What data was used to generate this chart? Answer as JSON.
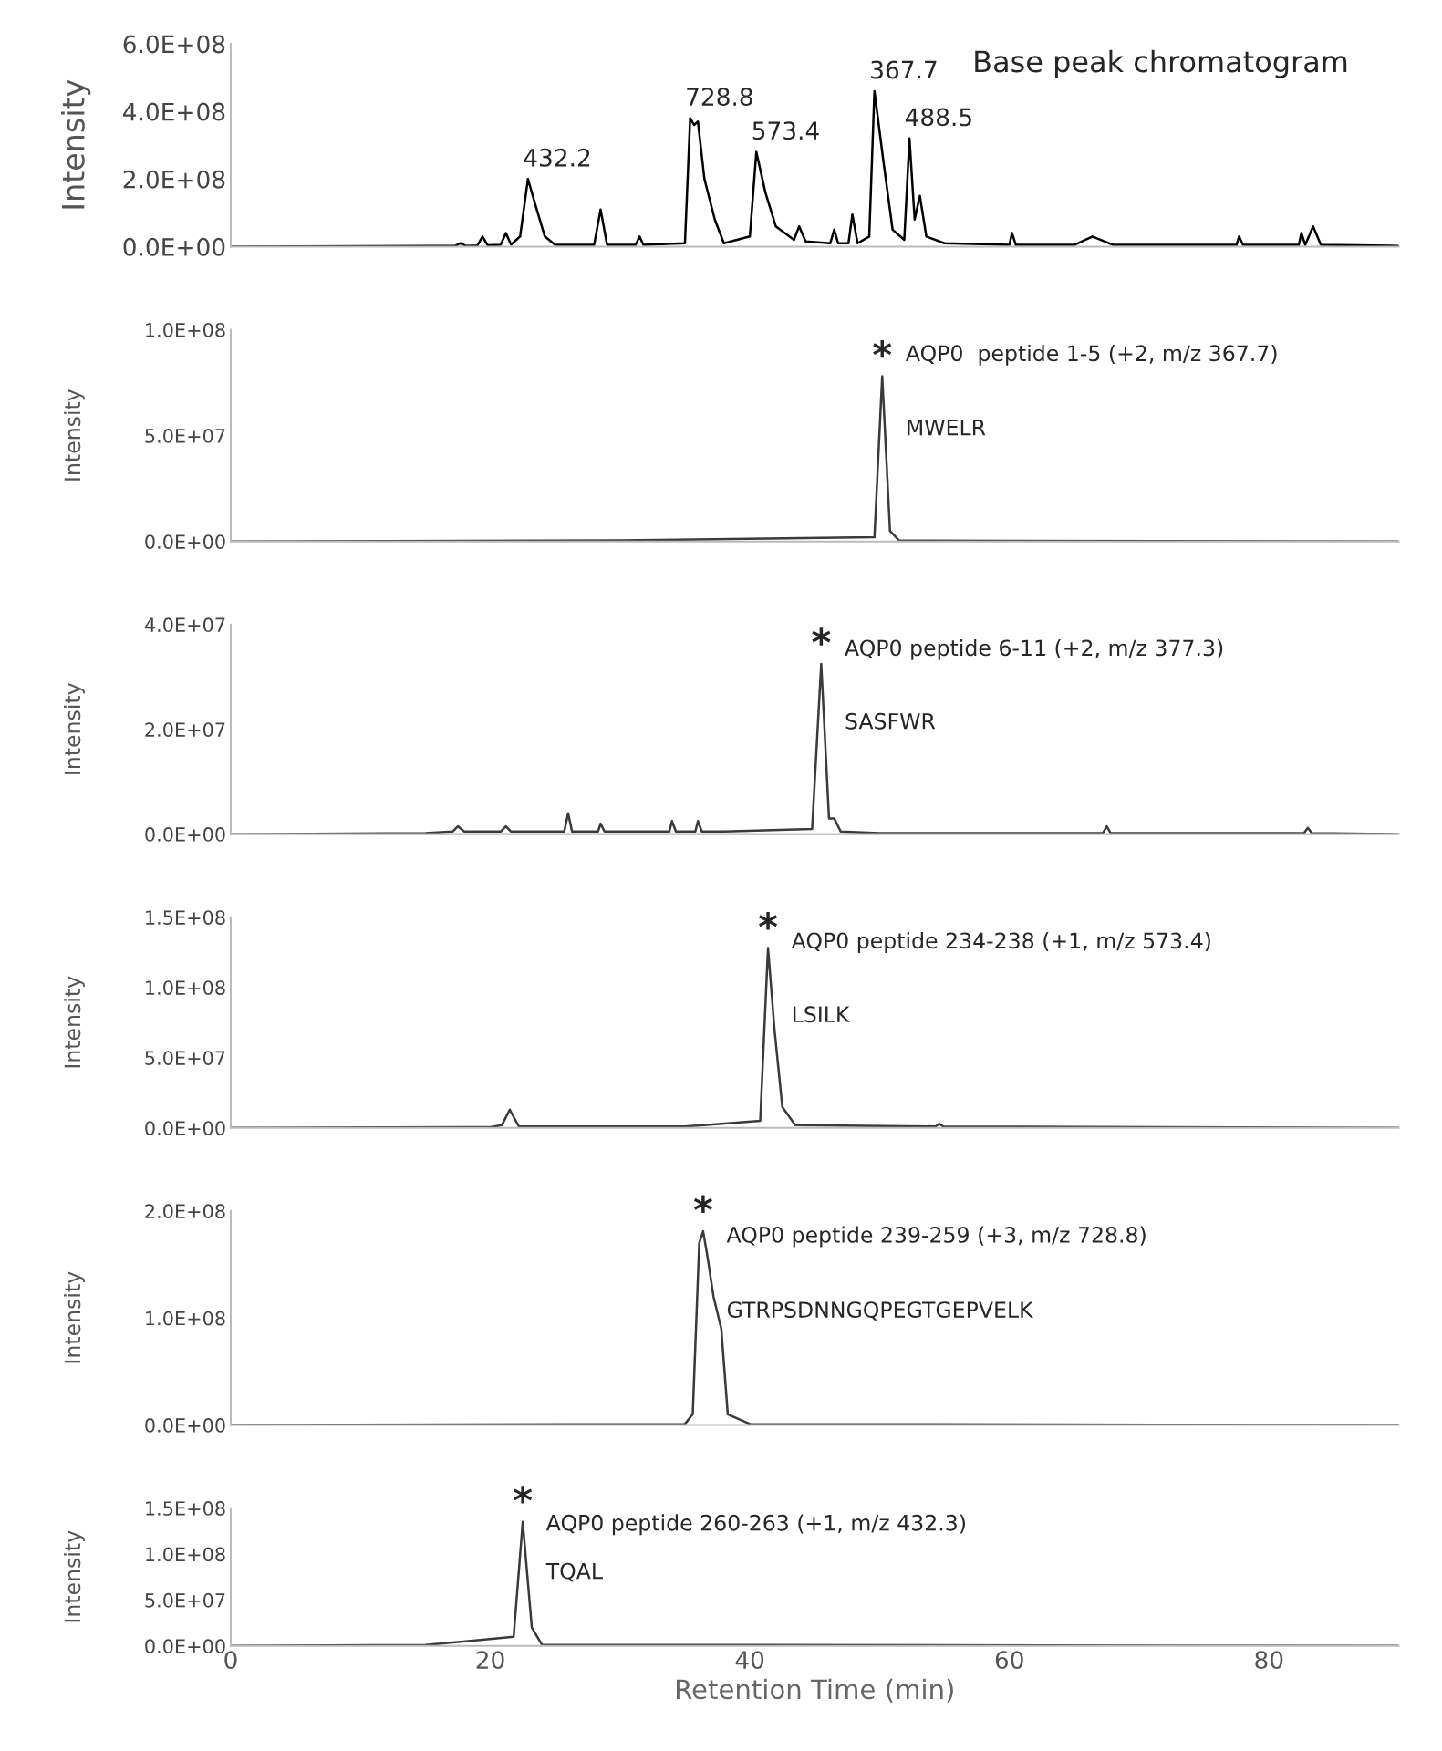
{
  "chart_data": [
    {
      "type": "line",
      "ylabel": "Intensity",
      "xlim": [
        0,
        90
      ],
      "ylim": [
        0,
        600000000.0
      ],
      "tick_labels": "y",
      "grid": false,
      "yticks": [
        {
          "value": 0,
          "label": "0.0E+00"
        },
        {
          "value": 200000000.0,
          "label": "2.0E+08"
        },
        {
          "value": 400000000.0,
          "label": "4.0E+08"
        },
        {
          "value": 600000000.0,
          "label": "6.0E+08"
        }
      ],
      "series": [
        {
          "color": "#000000",
          "x": [
            0,
            10,
            15,
            17.3,
            17.7,
            18.1,
            19,
            19.4,
            19.8,
            20.8,
            21.2,
            21.6,
            22.3,
            22.9,
            23.5,
            24.2,
            25,
            28,
            28.5,
            29,
            31.2,
            31.5,
            31.8,
            35,
            35.4,
            35.7,
            36,
            36.5,
            37.3,
            38,
            40,
            40.5,
            41.2,
            42,
            43.4,
            43.8,
            44.3,
            46.2,
            46.5,
            46.8,
            47.6,
            47.9,
            48.3,
            49.2,
            49.6,
            50.3,
            51,
            51.9,
            52.3,
            52.7,
            53.1,
            53.6,
            55,
            60,
            60.2,
            60.5,
            65,
            66.4,
            68,
            77.5,
            77.7,
            78,
            82.3,
            82.5,
            82.8,
            83.4,
            84,
            90
          ],
          "values": [
            0,
            1000000.0,
            2000000.0,
            2000000.0,
            10000000.0,
            2000000.0,
            3000000.0,
            30000000.0,
            4000000.0,
            5000000.0,
            40000000.0,
            6000000.0,
            30000000.0,
            200000000.0,
            120000000.0,
            30000000.0,
            5000000.0,
            5000000.0,
            110000000.0,
            5000000.0,
            5000000.0,
            30000000.0,
            5000000.0,
            10000000.0,
            380000000.0,
            360000000.0,
            370000000.0,
            200000000.0,
            80000000.0,
            10000000.0,
            30000000.0,
            280000000.0,
            160000000.0,
            60000000.0,
            20000000.0,
            60000000.0,
            15000000.0,
            10000000.0,
            50000000.0,
            10000000.0,
            10000000.0,
            95000000.0,
            10000000.0,
            30000000.0,
            460000000.0,
            250000000.0,
            50000000.0,
            20000000.0,
            320000000.0,
            80000000.0,
            150000000.0,
            30000000.0,
            10000000.0,
            5000000.0,
            40000000.0,
            5000000.0,
            5000000.0,
            30000000.0,
            5000000.0,
            5000000.0,
            30000000.0,
            5000000.0,
            5000000.0,
            40000000.0,
            5000000.0,
            60000000.0,
            5000000.0,
            2000000.0
          ]
        }
      ],
      "annotations": [
        {
          "text": "432.2",
          "x": 22.9,
          "y": 200000000.0
        },
        {
          "text": "728.8",
          "x": 35.4,
          "y": 380000000.0
        },
        {
          "text": "573.4",
          "x": 40.5,
          "y": 280000000.0
        },
        {
          "text": "367.7",
          "x": 49.6,
          "y": 460000000.0
        },
        {
          "text": "488.5",
          "x": 52.3,
          "y": 320000000.0
        },
        "Base peak chromatogram"
      ]
    },
    {
      "type": "line",
      "ylabel": "Intensity",
      "xlim": [
        0,
        90
      ],
      "ylim": [
        0,
        100000000.0
      ],
      "tick_labels": "y",
      "grid": false,
      "yticks": [
        {
          "value": 0,
          "label": "0.0E+00"
        },
        {
          "value": 50000000.0,
          "label": "5.0E+07"
        },
        {
          "value": 100000000.0,
          "label": "1.0E+08"
        }
      ],
      "series": [
        {
          "color": "#3a3a3a",
          "x": [
            0,
            30,
            49.6,
            50.2,
            50.8,
            51.5,
            60,
            90
          ],
          "values": [
            0,
            500000.0,
            2000000.0,
            78000000.0,
            5000000.0,
            500000.0,
            300000.0,
            0
          ]
        }
      ],
      "annotations": [
        {
          "text": "*",
          "x": 50.2,
          "y": 78000000.0
        },
        "AQP0  peptide 1-5 (+2, m/z 367.7)",
        "MWELR"
      ]
    },
    {
      "type": "line",
      "ylabel": "Intensity",
      "xlim": [
        0,
        90
      ],
      "ylim": [
        0,
        40000000.0
      ],
      "tick_labels": "y",
      "grid": false,
      "yticks": [
        {
          "value": 0,
          "label": "0.0E+00"
        },
        {
          "value": 20000000.0,
          "label": "2.0E+07"
        },
        {
          "value": 40000000.0,
          "label": "4.0E+07"
        }
      ],
      "series": [
        {
          "color": "#3a3a3a",
          "x": [
            0,
            15,
            17.1,
            17.5,
            18,
            20.8,
            21.2,
            21.6,
            25.7,
            26,
            26.3,
            28.3,
            28.5,
            28.8,
            33.8,
            34,
            34.3,
            35.8,
            36,
            36.3,
            38,
            44.8,
            45.5,
            46.1,
            46.5,
            47,
            50,
            67.2,
            67.5,
            67.8,
            82.7,
            83,
            83.3,
            90
          ],
          "values": [
            0,
            200000.0,
            500000.0,
            1500000.0,
            500000.0,
            500000.0,
            1500000.0,
            500000.0,
            500000.0,
            4000000.0,
            500000.0,
            500000.0,
            2000000.0,
            500000.0,
            500000.0,
            2500000.0,
            500000.0,
            500000.0,
            2500000.0,
            500000.0,
            500000.0,
            1000000.0,
            32500000.0,
            3000000.0,
            3000000.0,
            500000.0,
            200000.0,
            200000.0,
            1500000.0,
            200000.0,
            200000.0,
            1200000.0,
            200000.0,
            0
          ]
        }
      ],
      "annotations": [
        {
          "text": "*",
          "x": 45.5,
          "y": 32500000.0
        },
        "AQP0 peptide 6-11 (+2, m/z 377.3)",
        "SASFWR"
      ]
    },
    {
      "type": "line",
      "ylabel": "Intensity",
      "xlim": [
        0,
        90
      ],
      "ylim": [
        0,
        150000000.0
      ],
      "tick_labels": "y",
      "grid": false,
      "yticks": [
        {
          "value": 0,
          "label": "0.0E+00"
        },
        {
          "value": 50000000.0,
          "label": "5.0E+07"
        },
        {
          "value": 100000000.0,
          "label": "1.0E+08"
        },
        {
          "value": 150000000.0,
          "label": "1.5E+08"
        }
      ],
      "series": [
        {
          "color": "#3a3a3a",
          "x": [
            0,
            20,
            20.9,
            21.5,
            22.2,
            35,
            40.8,
            41.4,
            41.9,
            42.5,
            43.5,
            54.3,
            54.6,
            54.9,
            90
          ],
          "values": [
            0,
            500000.0,
            2000000.0,
            13000000.0,
            1000000.0,
            1000000.0,
            5000000.0,
            128000000.0,
            70000000.0,
            15000000.0,
            2000000.0,
            1000000.0,
            3000000.0,
            1000000.0,
            0
          ]
        }
      ],
      "annotations": [
        {
          "text": "*",
          "x": 41.4,
          "y": 128000000.0
        },
        "AQP0 peptide 234-238 (+1, m/z 573.4)",
        "LSILK"
      ]
    },
    {
      "type": "line",
      "ylabel": "Intensity",
      "xlim": [
        0,
        90
      ],
      "ylim": [
        0,
        200000000.0
      ],
      "tick_labels": "y",
      "grid": false,
      "yticks": [
        {
          "value": 0,
          "label": "0.0E+00"
        },
        {
          "value": 100000000.0,
          "label": "1.0E+08"
        },
        {
          "value": 200000000.0,
          "label": "2.0E+08"
        }
      ],
      "series": [
        {
          "color": "#3a3a3a",
          "x": [
            0,
            35,
            35.6,
            36.1,
            36.4,
            36.7,
            37.2,
            37.8,
            38.3,
            40,
            90
          ],
          "values": [
            0,
            1000000.0,
            10000000.0,
            170000000.0,
            181000000.0,
            160000000.0,
            120000000.0,
            90000000.0,
            10000000.0,
            1000000.0,
            0
          ]
        }
      ],
      "annotations": [
        {
          "text": "*",
          "x": 36.4,
          "y": 181000000.0
        },
        "AQP0 peptide 239-259 (+3, m/z 728.8)",
        "GTRPSDNNGQPEGTGEPVELK"
      ]
    },
    {
      "type": "line",
      "ylabel": "Intensity",
      "xlabel": "Retention Time (min)",
      "xlim": [
        0,
        90
      ],
      "ylim": [
        0,
        150000000.0
      ],
      "grid": false,
      "xticks": [
        0,
        20,
        40,
        60,
        80
      ],
      "yticks": [
        {
          "value": 0,
          "label": "0.0E+00"
        },
        {
          "value": 50000000.0,
          "label": "5.0E+07"
        },
        {
          "value": 100000000.0,
          "label": "1.0E+08"
        },
        {
          "value": 150000000.0,
          "label": "1.5E+08"
        }
      ],
      "series": [
        {
          "color": "#3a3a3a",
          "x": [
            0,
            15,
            21.8,
            22.5,
            23.2,
            24,
            40,
            90
          ],
          "values": [
            0,
            1000000.0,
            10000000.0,
            135000000.0,
            20000000.0,
            1000000.0,
            1000000.0,
            0
          ]
        }
      ],
      "annotations": [
        {
          "text": "*",
          "x": 22.5,
          "y": 135000000.0
        },
        "AQP0 peptide 260-263 (+1, m/z 432.3)",
        "TQAL"
      ]
    }
  ]
}
